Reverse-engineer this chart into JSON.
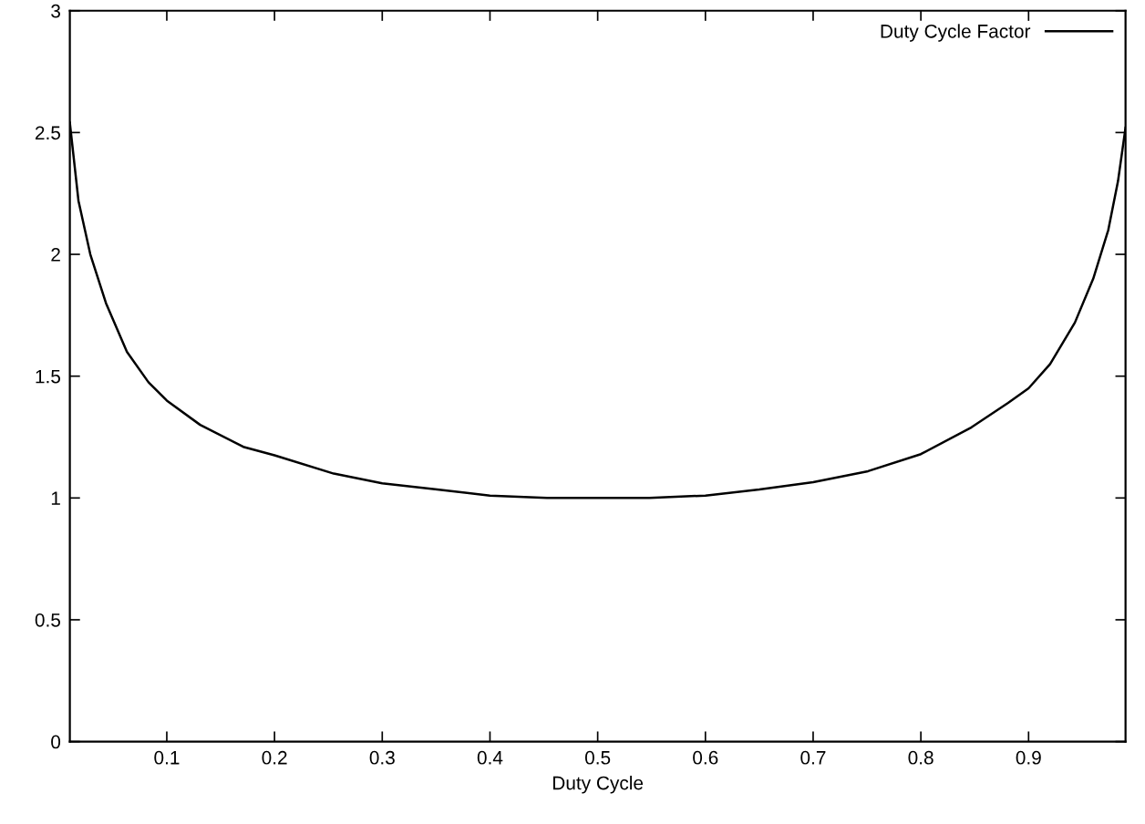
{
  "chart_data": {
    "type": "line",
    "xlabel": "Duty Cycle",
    "series": [
      {
        "name": "Duty Cycle Factor",
        "color": "#000000",
        "x": [
          0.01,
          0.018,
          0.029,
          0.0435,
          0.063,
          0.083,
          0.1,
          0.131,
          0.171,
          0.2,
          0.255,
          0.3,
          0.351,
          0.4,
          0.453,
          0.5,
          0.548,
          0.6,
          0.65,
          0.7,
          0.751,
          0.8,
          0.847,
          0.881,
          0.9,
          0.92,
          0.943,
          0.96,
          0.974,
          0.983,
          0.99
        ],
        "values": [
          2.54,
          2.22,
          2.0,
          1.8,
          1.6,
          1.475,
          1.4,
          1.3,
          1.21,
          1.175,
          1.1,
          1.06,
          1.035,
          1.01,
          1.0,
          1.0,
          1.0,
          1.01,
          1.035,
          1.065,
          1.11,
          1.18,
          1.29,
          1.39,
          1.45,
          1.55,
          1.72,
          1.9,
          2.1,
          2.3,
          2.52
        ]
      }
    ],
    "xlim": [
      0.01,
      0.99
    ],
    "xticks": [
      0.1,
      0.2,
      0.3,
      0.4,
      0.5,
      0.6,
      0.7,
      0.8,
      0.9
    ],
    "ylim": [
      0,
      3
    ],
    "yticks": [
      0,
      0.5,
      1,
      1.5,
      2,
      2.5,
      3
    ],
    "legend": "top right",
    "grid": false,
    "marker": "none",
    "line_style": "solid"
  }
}
